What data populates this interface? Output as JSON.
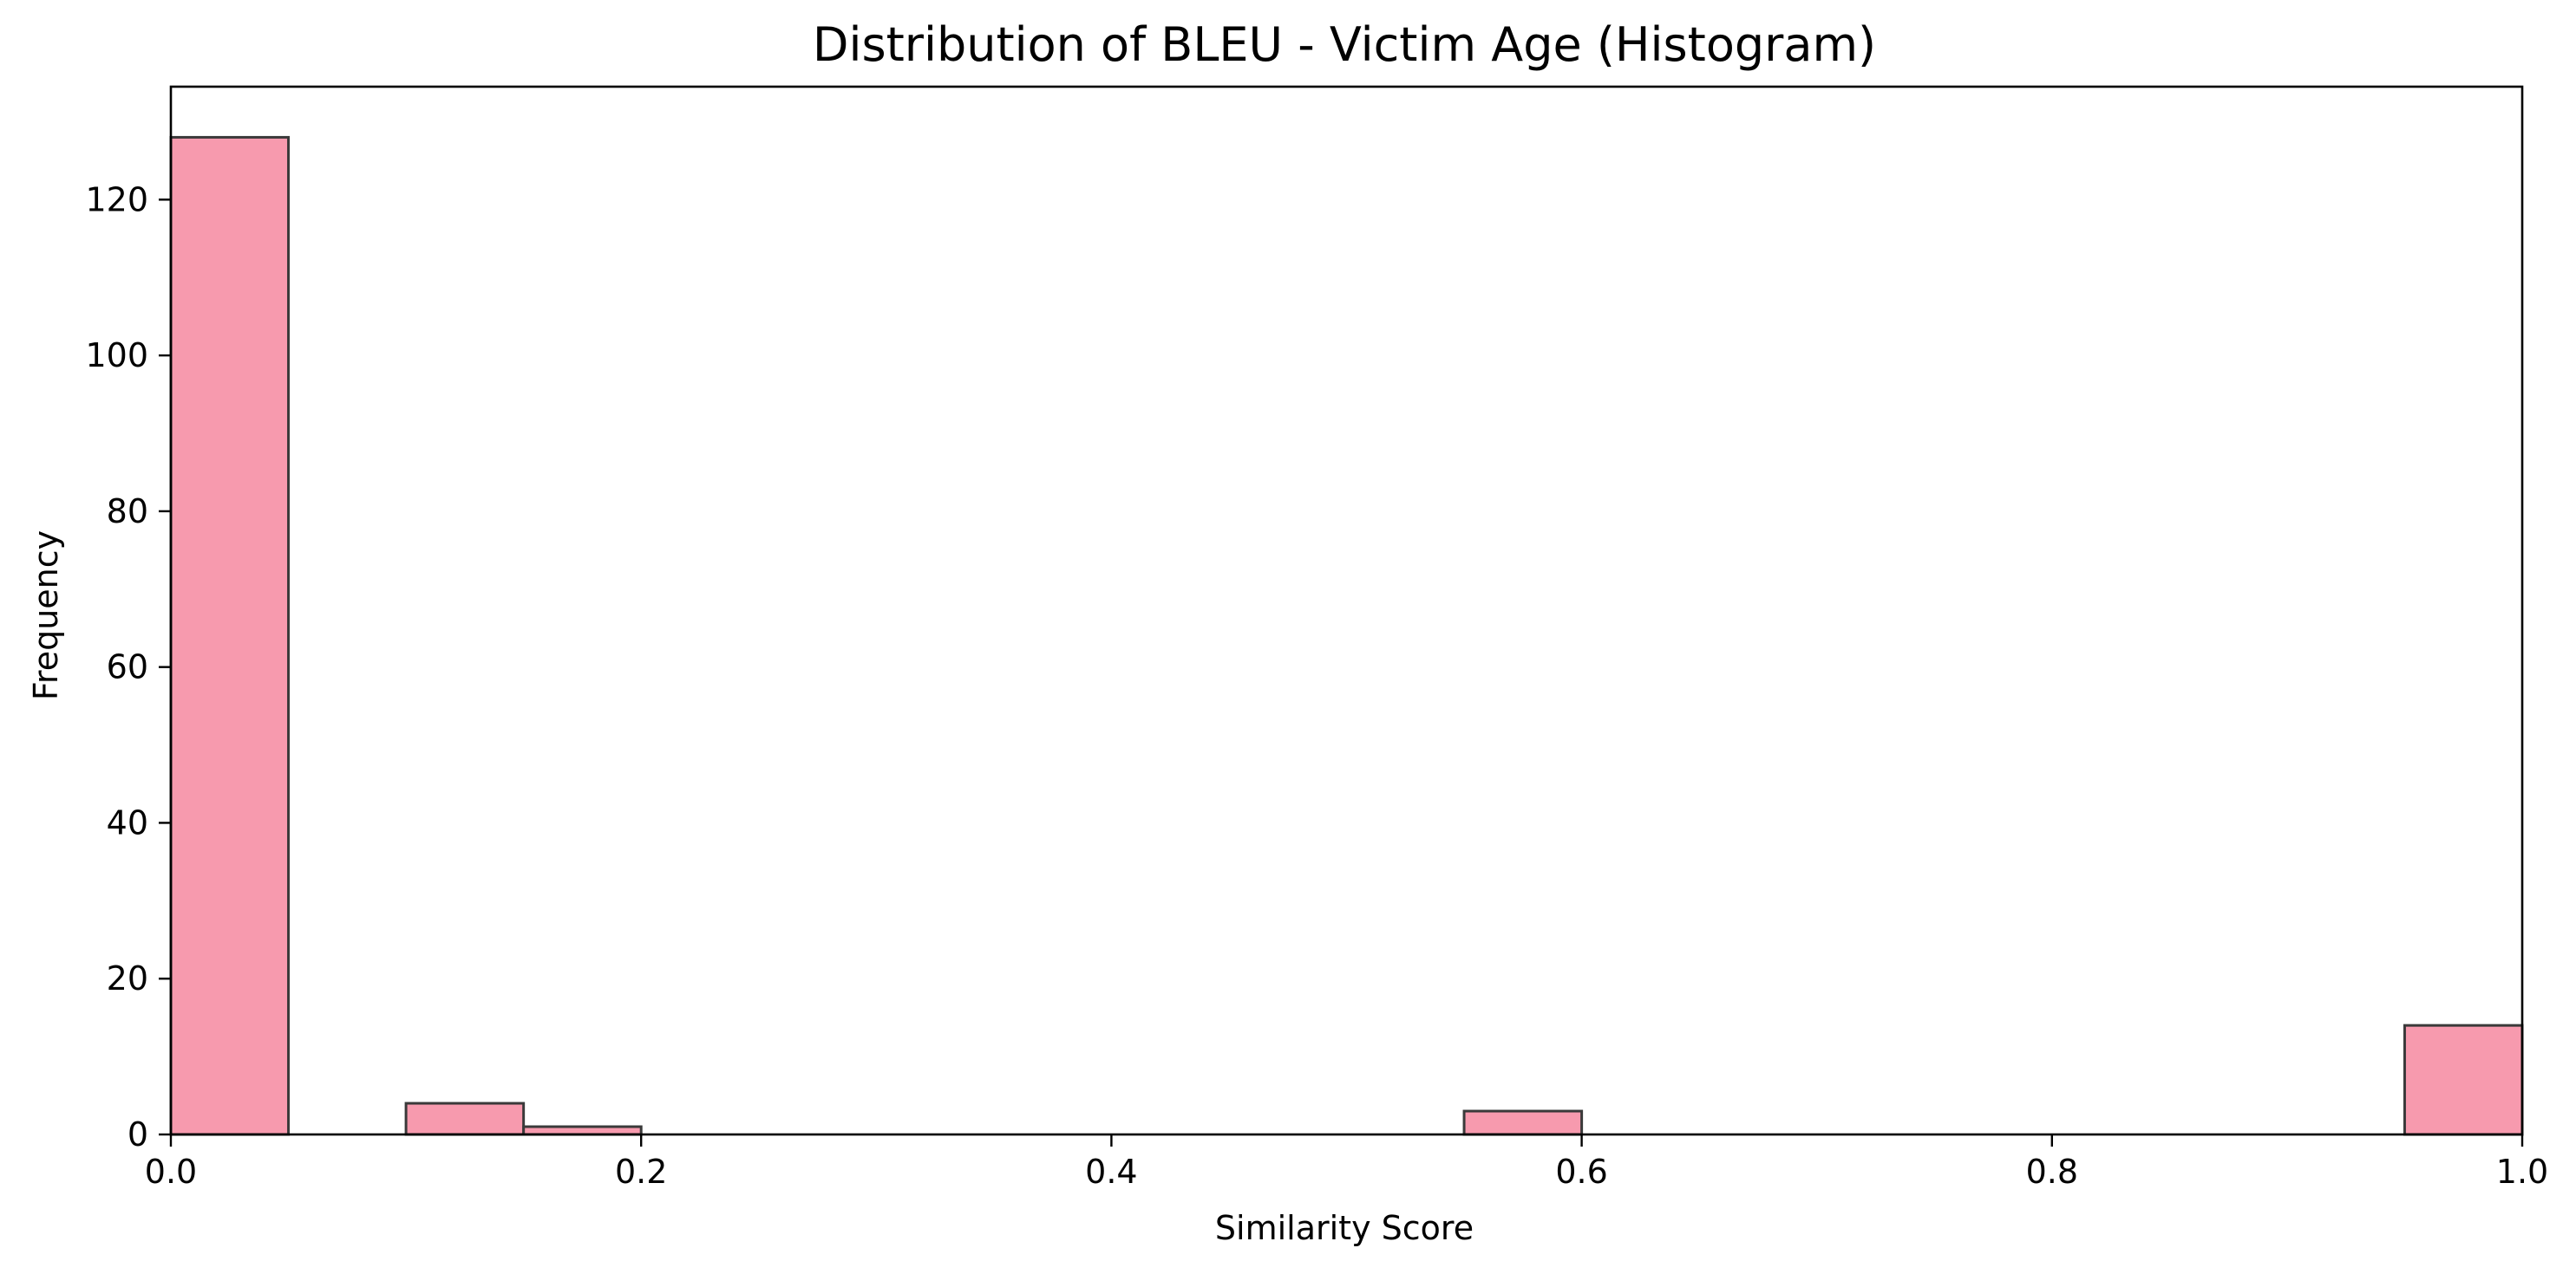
{
  "chart_data": {
    "type": "bar",
    "subtype": "histogram",
    "title": "Distribution of BLEU - Victim Age (Histogram)",
    "xlabel": "Similarity Score",
    "ylabel": "Frequency",
    "xlim": [
      0.0,
      1.0
    ],
    "ylim": [
      0,
      134.5
    ],
    "bin_width": 0.05,
    "bins": [
      {
        "x0": 0.0,
        "x1": 0.05,
        "count": 128
      },
      {
        "x0": 0.05,
        "x1": 0.1,
        "count": 0
      },
      {
        "x0": 0.1,
        "x1": 0.15,
        "count": 4
      },
      {
        "x0": 0.15,
        "x1": 0.2,
        "count": 1
      },
      {
        "x0": 0.2,
        "x1": 0.25,
        "count": 0
      },
      {
        "x0": 0.25,
        "x1": 0.3,
        "count": 0
      },
      {
        "x0": 0.3,
        "x1": 0.35,
        "count": 0
      },
      {
        "x0": 0.35,
        "x1": 0.4,
        "count": 0
      },
      {
        "x0": 0.4,
        "x1": 0.45,
        "count": 0
      },
      {
        "x0": 0.45,
        "x1": 0.5,
        "count": 0
      },
      {
        "x0": 0.5,
        "x1": 0.55,
        "count": 0
      },
      {
        "x0": 0.55,
        "x1": 0.6,
        "count": 3
      },
      {
        "x0": 0.6,
        "x1": 0.65,
        "count": 0
      },
      {
        "x0": 0.65,
        "x1": 0.7,
        "count": 0
      },
      {
        "x0": 0.7,
        "x1": 0.75,
        "count": 0
      },
      {
        "x0": 0.75,
        "x1": 0.8,
        "count": 0
      },
      {
        "x0": 0.8,
        "x1": 0.85,
        "count": 0
      },
      {
        "x0": 0.85,
        "x1": 0.9,
        "count": 0
      },
      {
        "x0": 0.9,
        "x1": 0.95,
        "count": 0
      },
      {
        "x0": 0.95,
        "x1": 1.0,
        "count": 14
      }
    ],
    "x_ticks": [
      {
        "value": 0.0,
        "label": "0.0"
      },
      {
        "value": 0.2,
        "label": "0.2"
      },
      {
        "value": 0.4,
        "label": "0.4"
      },
      {
        "value": 0.6,
        "label": "0.6"
      },
      {
        "value": 0.8,
        "label": "0.8"
      },
      {
        "value": 1.0,
        "label": "1.0"
      }
    ],
    "y_ticks": [
      {
        "value": 0,
        "label": "0"
      },
      {
        "value": 20,
        "label": "20"
      },
      {
        "value": 40,
        "label": "40"
      },
      {
        "value": 60,
        "label": "60"
      },
      {
        "value": 80,
        "label": "80"
      },
      {
        "value": 100,
        "label": "100"
      },
      {
        "value": 120,
        "label": "120"
      }
    ],
    "grid": false,
    "bar_color": "#f79aae",
    "bar_edge_color": "#3a3a3a"
  }
}
